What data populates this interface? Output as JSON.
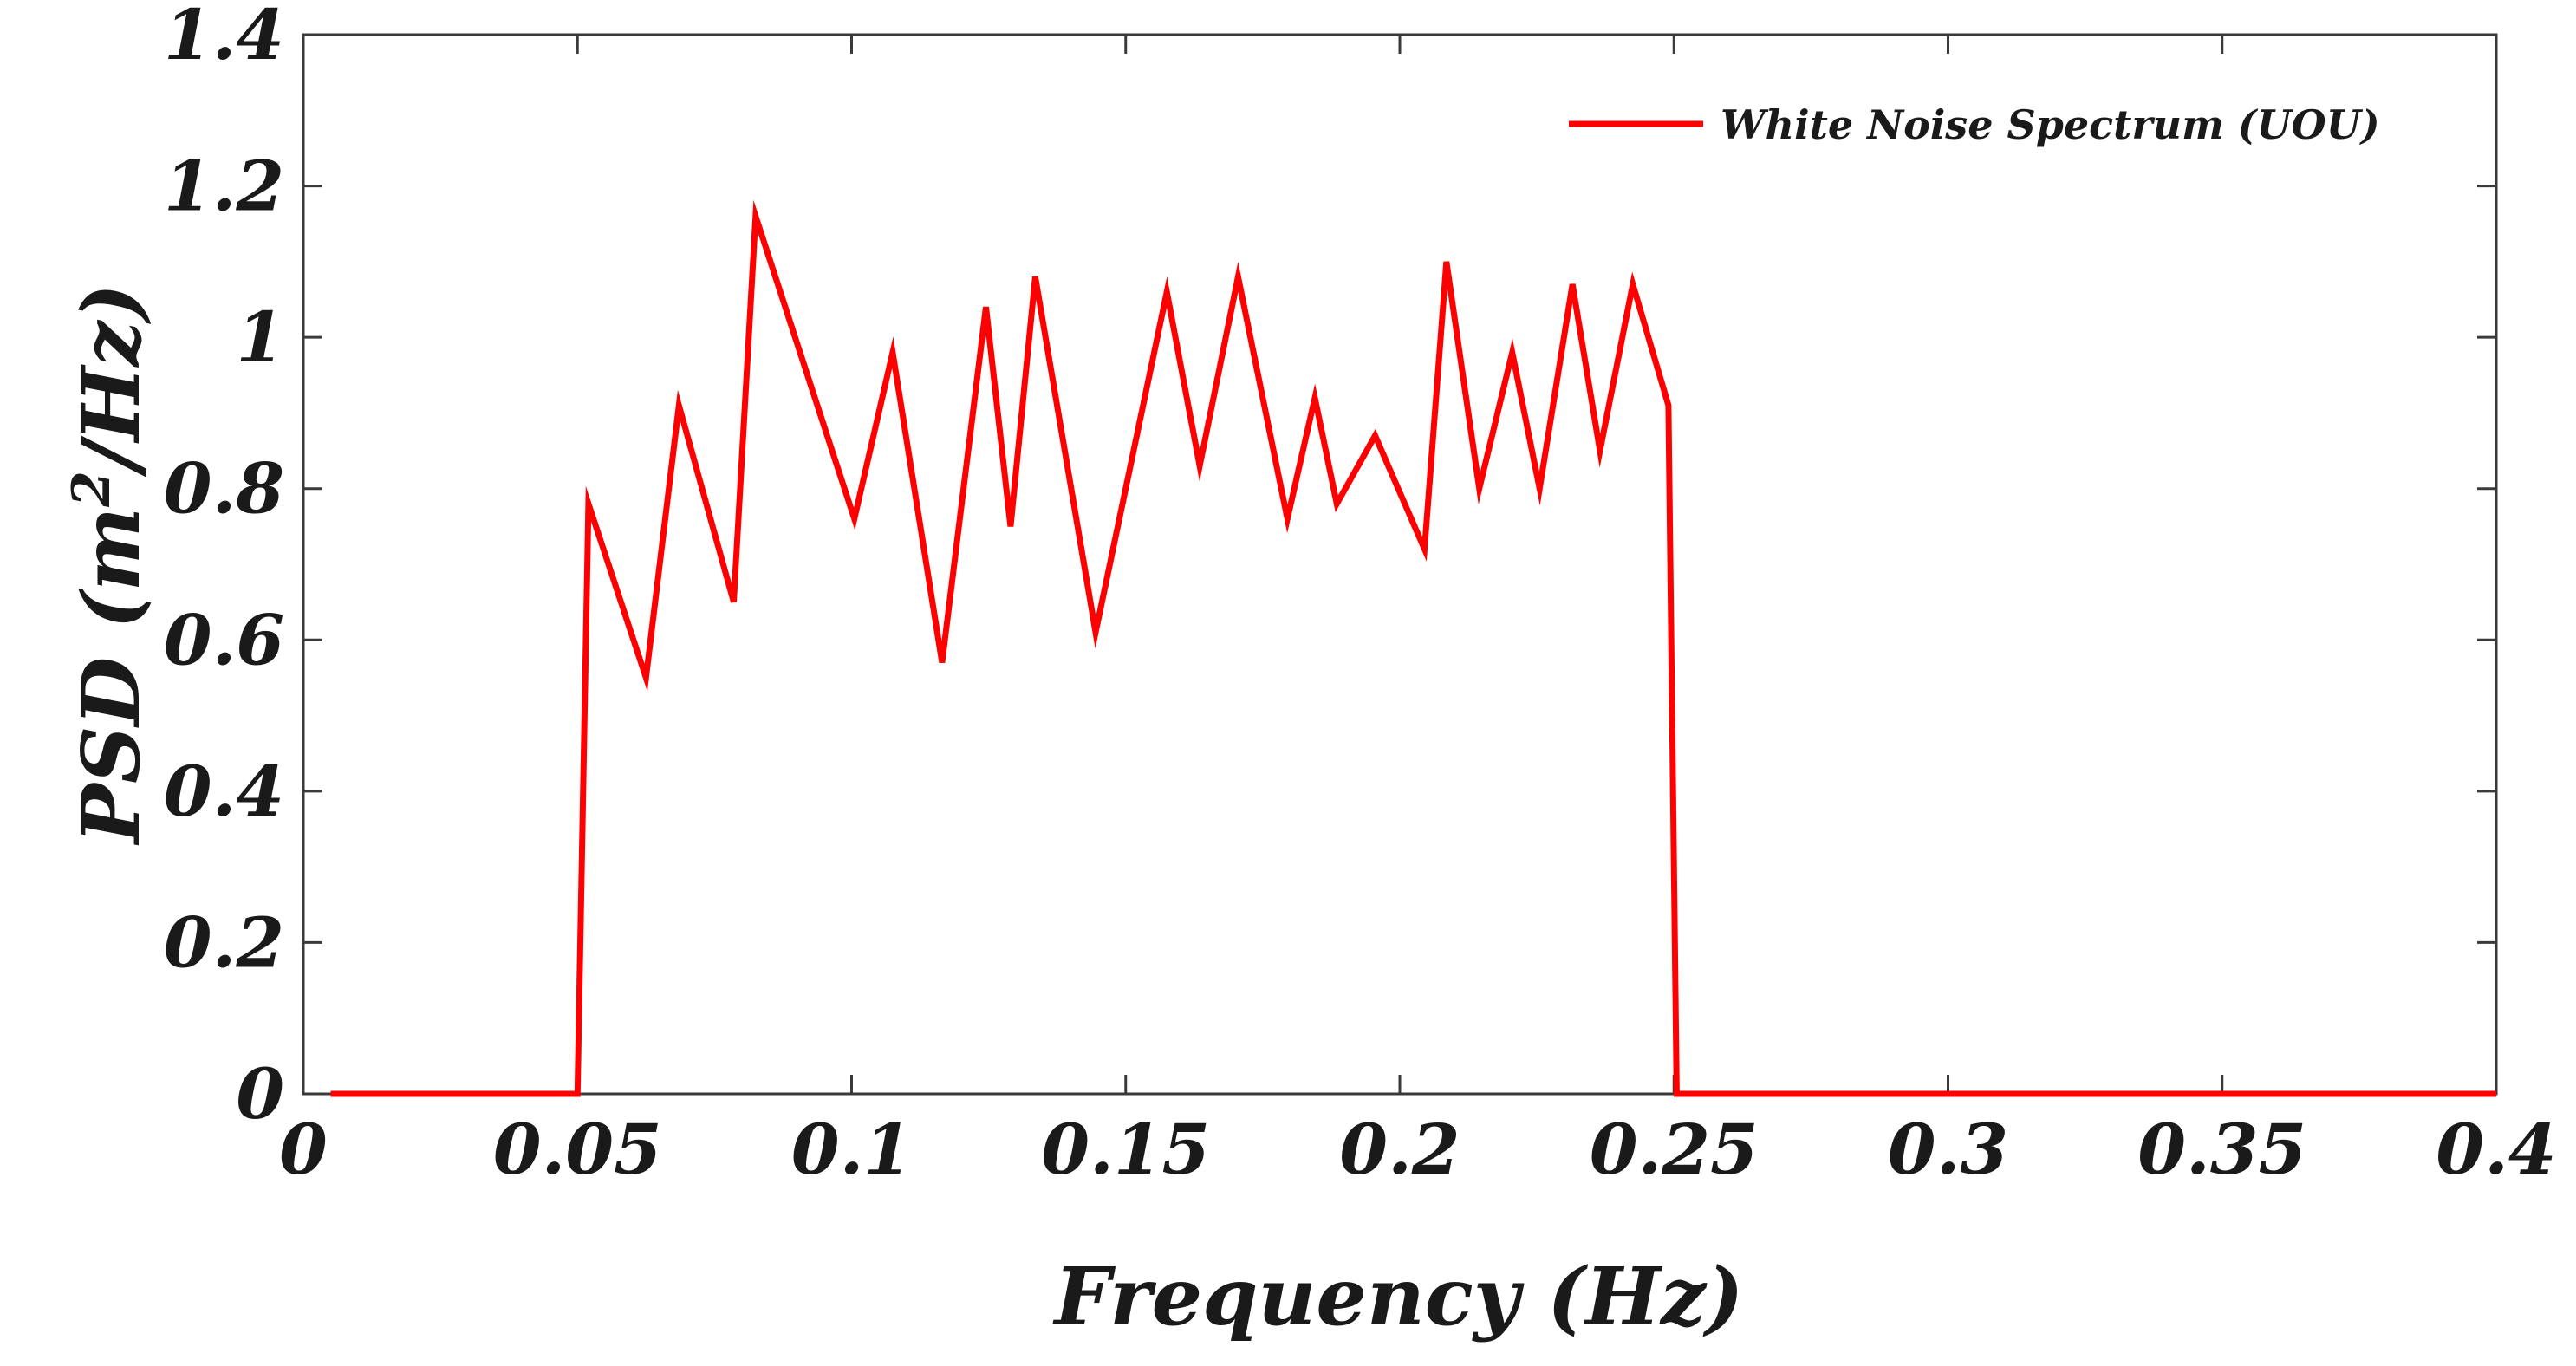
{
  "chart_data": {
    "type": "line",
    "title": "",
    "xlabel": "Frequency (Hz)",
    "ylabel": {
      "prefix": "PSD (m",
      "superscript": "2",
      "suffix": "/Hz)"
    },
    "xlim": [
      0,
      0.4
    ],
    "ylim": [
      0,
      1.4
    ],
    "xticks": [
      0,
      0.05,
      0.1,
      0.15,
      0.2,
      0.25,
      0.3,
      0.35,
      0.4
    ],
    "xtick_labels": [
      "0",
      "0.05",
      "0.1",
      "0.15",
      "0.2",
      "0.25",
      "0.3",
      "0.35",
      "0.4"
    ],
    "yticks": [
      0,
      0.2,
      0.4,
      0.6,
      0.8,
      1.0,
      1.2,
      1.4
    ],
    "ytick_labels": [
      "0",
      "0.2",
      "0.4",
      "0.6",
      "0.8",
      "1",
      "1.2",
      "1.4"
    ],
    "grid": false,
    "legend_position": "top-right",
    "series": [
      {
        "name": "White Noise Spectrum (UOU)",
        "color": "#ff0000",
        "x": [
          0.005,
          0.05,
          0.052,
          0.0625,
          0.0685,
          0.0785,
          0.0825,
          0.1005,
          0.1075,
          0.1165,
          0.1245,
          0.129,
          0.1335,
          0.1445,
          0.1575,
          0.1635,
          0.1705,
          0.1795,
          0.1845,
          0.1885,
          0.1955,
          0.2045,
          0.2085,
          0.2145,
          0.2205,
          0.2255,
          0.2315,
          0.2365,
          0.2425,
          0.249,
          0.2505,
          0.3,
          0.35,
          0.4
        ],
        "y": [
          0,
          0,
          0.78,
          0.55,
          0.91,
          0.65,
          1.16,
          0.76,
          0.98,
          0.57,
          1.04,
          0.75,
          1.08,
          0.61,
          1.06,
          0.83,
          1.08,
          0.76,
          0.92,
          0.78,
          0.87,
          0.72,
          1.1,
          0.8,
          0.98,
          0.8,
          1.07,
          0.85,
          1.07,
          0.91,
          0,
          0,
          0,
          0
        ]
      }
    ]
  }
}
